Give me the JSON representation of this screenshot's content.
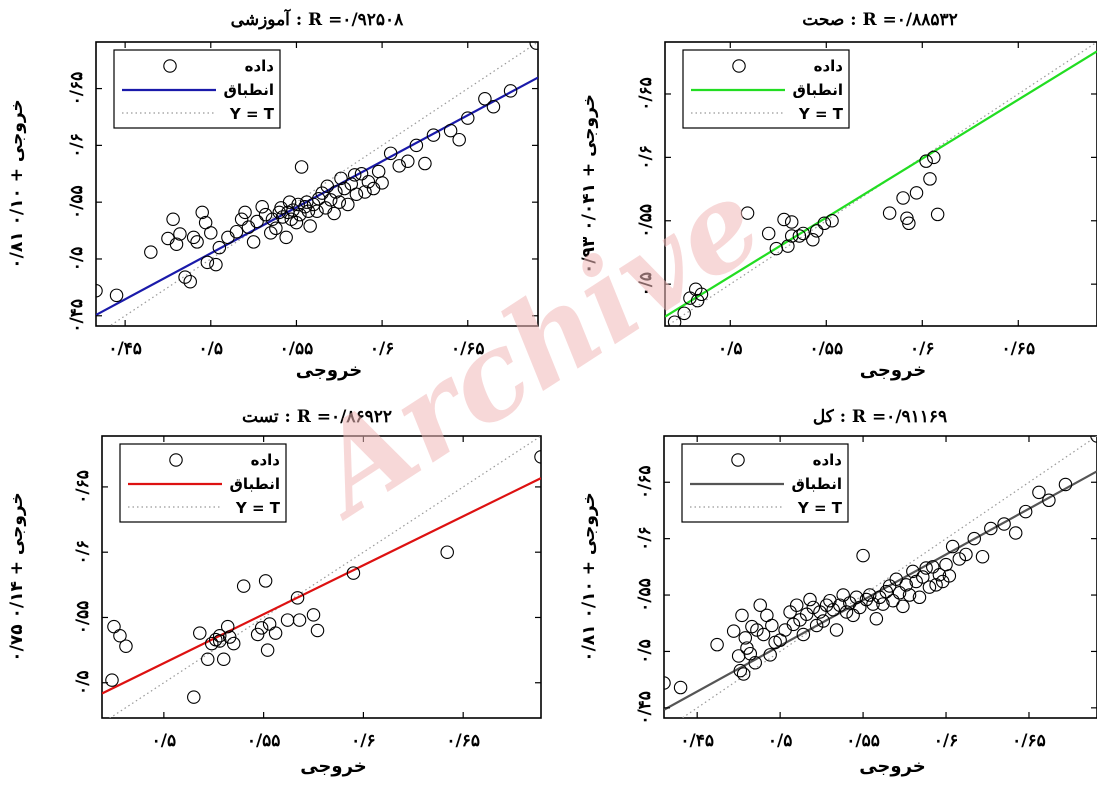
{
  "watermark": "Archive",
  "legend": {
    "data": "داده",
    "fit": "انطباق",
    "identity": "Y = T"
  },
  "chart_data": [
    {
      "type": "scatter",
      "title": "آموزشی : R =۰/۹۲۵۰۸",
      "xlabel": "خروجی",
      "ylabel": "۰/۸۱ خروجی + ۰/۱۰",
      "xlim": [
        0.433,
        0.691
      ],
      "ylim": [
        0.441,
        0.691
      ],
      "xticks": [
        0.45,
        0.5,
        0.55,
        0.6,
        0.65
      ],
      "xtick_labels": [
        "۰/۴۵",
        "۰/۵",
        "۰/۵۵",
        "۰/۶",
        "۰/۶۵"
      ],
      "yticks": [
        0.45,
        0.5,
        0.55,
        0.6,
        0.65
      ],
      "ytick_labels": [
        "۰/۴۵",
        "۰/۵",
        "۰/۵۵",
        "۰/۶",
        "۰/۶۵"
      ],
      "fit": {
        "slope": 0.81,
        "intercept": 0.1,
        "color": "#1a1aaa"
      },
      "points": [
        [
          0.433,
          0.472
        ],
        [
          0.445,
          0.468
        ],
        [
          0.465,
          0.506
        ],
        [
          0.475,
          0.518
        ],
        [
          0.478,
          0.535
        ],
        [
          0.48,
          0.513
        ],
        [
          0.482,
          0.522
        ],
        [
          0.485,
          0.484
        ],
        [
          0.488,
          0.48
        ],
        [
          0.49,
          0.519
        ],
        [
          0.492,
          0.515
        ],
        [
          0.495,
          0.541
        ],
        [
          0.497,
          0.532
        ],
        [
          0.498,
          0.497
        ],
        [
          0.5,
          0.523
        ],
        [
          0.503,
          0.495
        ],
        [
          0.505,
          0.51
        ],
        [
          0.51,
          0.519
        ],
        [
          0.515,
          0.524
        ],
        [
          0.518,
          0.535
        ],
        [
          0.52,
          0.541
        ],
        [
          0.522,
          0.528
        ],
        [
          0.525,
          0.515
        ],
        [
          0.527,
          0.533
        ],
        [
          0.53,
          0.546
        ],
        [
          0.532,
          0.539
        ],
        [
          0.535,
          0.523
        ],
        [
          0.536,
          0.535
        ],
        [
          0.538,
          0.527
        ],
        [
          0.54,
          0.541
        ],
        [
          0.541,
          0.545
        ],
        [
          0.542,
          0.537
        ],
        [
          0.544,
          0.519
        ],
        [
          0.545,
          0.541
        ],
        [
          0.546,
          0.55
        ],
        [
          0.547,
          0.535
        ],
        [
          0.548,
          0.543
        ],
        [
          0.55,
          0.532
        ],
        [
          0.551,
          0.548
        ],
        [
          0.552,
          0.539
        ],
        [
          0.553,
          0.581
        ],
        [
          0.555,
          0.546
        ],
        [
          0.556,
          0.55
        ],
        [
          0.557,
          0.542
        ],
        [
          0.558,
          0.529
        ],
        [
          0.56,
          0.548
        ],
        [
          0.562,
          0.542
        ],
        [
          0.563,
          0.553
        ],
        [
          0.565,
          0.558
        ],
        [
          0.567,
          0.545
        ],
        [
          0.568,
          0.564
        ],
        [
          0.57,
          0.552
        ],
        [
          0.572,
          0.54
        ],
        [
          0.573,
          0.559
        ],
        [
          0.575,
          0.55
        ],
        [
          0.576,
          0.571
        ],
        [
          0.578,
          0.562
        ],
        [
          0.58,
          0.548
        ],
        [
          0.582,
          0.566
        ],
        [
          0.584,
          0.574
        ],
        [
          0.585,
          0.557
        ],
        [
          0.588,
          0.575
        ],
        [
          0.59,
          0.559
        ],
        [
          0.592,
          0.568
        ],
        [
          0.595,
          0.562
        ],
        [
          0.598,
          0.577
        ],
        [
          0.6,
          0.567
        ],
        [
          0.605,
          0.593
        ],
        [
          0.61,
          0.582
        ],
        [
          0.615,
          0.586
        ],
        [
          0.62,
          0.6
        ],
        [
          0.625,
          0.584
        ],
        [
          0.63,
          0.609
        ],
        [
          0.64,
          0.613
        ],
        [
          0.645,
          0.605
        ],
        [
          0.65,
          0.624
        ],
        [
          0.66,
          0.641
        ],
        [
          0.665,
          0.634
        ],
        [
          0.675,
          0.648
        ],
        [
          0.69,
          0.69
        ]
      ]
    },
    {
      "type": "scatter",
      "title": "صحت : R =۰/۸۸۵۳۲",
      "xlabel": "خروجی",
      "ylabel": "۰/۹۳ خروجی + ۰/۰۴۱",
      "xlim": [
        0.466,
        0.691
      ],
      "ylim": [
        0.467,
        0.691
      ],
      "xticks": [
        0.5,
        0.55,
        0.6,
        0.65
      ],
      "xtick_labels": [
        "۰/۵",
        "۰/۵۵",
        "۰/۶",
        "۰/۶۵"
      ],
      "yticks": [
        0.5,
        0.55,
        0.6,
        0.65
      ],
      "ytick_labels": [
        "۰/۵",
        "۰/۵۵",
        "۰/۶",
        "۰/۶۵"
      ],
      "fit": {
        "slope": 0.93,
        "intercept": 0.041,
        "color": "#22dd22"
      },
      "points": [
        [
          0.471,
          0.47
        ],
        [
          0.476,
          0.477
        ],
        [
          0.479,
          0.489
        ],
        [
          0.482,
          0.496
        ],
        [
          0.483,
          0.487
        ],
        [
          0.485,
          0.492
        ],
        [
          0.509,
          0.556
        ],
        [
          0.52,
          0.54
        ],
        [
          0.524,
          0.528
        ],
        [
          0.528,
          0.551
        ],
        [
          0.53,
          0.53
        ],
        [
          0.532,
          0.538
        ],
        [
          0.532,
          0.549
        ],
        [
          0.536,
          0.538
        ],
        [
          0.538,
          0.54
        ],
        [
          0.543,
          0.535
        ],
        [
          0.545,
          0.542
        ],
        [
          0.549,
          0.548
        ],
        [
          0.553,
          0.55
        ],
        [
          0.583,
          0.556
        ],
        [
          0.59,
          0.568
        ],
        [
          0.592,
          0.552
        ],
        [
          0.593,
          0.548
        ],
        [
          0.597,
          0.572
        ],
        [
          0.602,
          0.597
        ],
        [
          0.604,
          0.583
        ],
        [
          0.606,
          0.6
        ],
        [
          0.608,
          0.555
        ]
      ]
    },
    {
      "type": "scatter",
      "title": "تست : R =۰/۸۶۹۲۲",
      "xlabel": "خروجی",
      "ylabel": "۰/۷۵ خروجی + ۰/۱۴",
      "xlim": [
        0.469,
        0.689
      ],
      "ylim": [
        0.473,
        0.689
      ],
      "xticks": [
        0.5,
        0.55,
        0.6,
        0.65
      ],
      "xtick_labels": [
        "۰/۵",
        "۰/۵۵",
        "۰/۶",
        "۰/۶۵"
      ],
      "yticks": [
        0.5,
        0.55,
        0.6,
        0.65
      ],
      "ytick_labels": [
        "۰/۵",
        "۰/۵۵",
        "۰/۶",
        "۰/۶۵"
      ],
      "fit": {
        "slope": 0.75,
        "intercept": 0.14,
        "color": "#dd1111"
      },
      "points": [
        [
          0.474,
          0.502
        ],
        [
          0.475,
          0.543
        ],
        [
          0.478,
          0.536
        ],
        [
          0.481,
          0.528
        ],
        [
          0.515,
          0.489
        ],
        [
          0.518,
          0.538
        ],
        [
          0.522,
          0.518
        ],
        [
          0.524,
          0.53
        ],
        [
          0.526,
          0.533
        ],
        [
          0.528,
          0.532
        ],
        [
          0.528,
          0.536
        ],
        [
          0.53,
          0.518
        ],
        [
          0.532,
          0.543
        ],
        [
          0.533,
          0.535
        ],
        [
          0.535,
          0.53
        ],
        [
          0.54,
          0.574
        ],
        [
          0.547,
          0.537
        ],
        [
          0.549,
          0.542
        ],
        [
          0.551,
          0.578
        ],
        [
          0.552,
          0.525
        ],
        [
          0.553,
          0.545
        ],
        [
          0.556,
          0.538
        ],
        [
          0.562,
          0.548
        ],
        [
          0.567,
          0.565
        ],
        [
          0.568,
          0.548
        ],
        [
          0.575,
          0.552
        ],
        [
          0.577,
          0.54
        ],
        [
          0.595,
          0.584
        ],
        [
          0.642,
          0.6
        ],
        [
          0.689,
          0.673
        ]
      ]
    },
    {
      "type": "scatter",
      "title": "کل : R =۰/۹۱۱۶۹",
      "xlabel": "خروجی",
      "ylabel": "۰/۸۱ خروجی + ۰/۱۰",
      "xlim": [
        0.43,
        0.691
      ],
      "ylim": [
        0.441,
        0.691
      ],
      "xticks": [
        0.45,
        0.5,
        0.55,
        0.6,
        0.65
      ],
      "xtick_labels": [
        "۰/۴۵",
        "۰/۵",
        "۰/۵۵",
        "۰/۶",
        "۰/۶۵"
      ],
      "yticks": [
        0.45,
        0.5,
        0.55,
        0.6,
        0.65
      ],
      "ytick_labels": [
        "۰/۴۵",
        "۰/۵",
        "۰/۵۵",
        "۰/۶",
        "۰/۶۵"
      ],
      "fit": {
        "slope": 0.81,
        "intercept": 0.1,
        "color": "#555555"
      },
      "points": [
        [
          0.43,
          0.472
        ],
        [
          0.44,
          0.468
        ],
        [
          0.462,
          0.506
        ],
        [
          0.472,
          0.518
        ],
        [
          0.475,
          0.496
        ],
        [
          0.476,
          0.483
        ],
        [
          0.477,
          0.532
        ],
        [
          0.478,
          0.48
        ],
        [
          0.479,
          0.512
        ],
        [
          0.48,
          0.503
        ],
        [
          0.482,
          0.498
        ],
        [
          0.483,
          0.522
        ],
        [
          0.485,
          0.49
        ],
        [
          0.486,
          0.519
        ],
        [
          0.488,
          0.541
        ],
        [
          0.49,
          0.515
        ],
        [
          0.492,
          0.532
        ],
        [
          0.494,
          0.497
        ],
        [
          0.495,
          0.523
        ],
        [
          0.497,
          0.508
        ],
        [
          0.5,
          0.51
        ],
        [
          0.503,
          0.519
        ],
        [
          0.506,
          0.535
        ],
        [
          0.508,
          0.524
        ],
        [
          0.51,
          0.541
        ],
        [
          0.512,
          0.528
        ],
        [
          0.514,
          0.515
        ],
        [
          0.516,
          0.533
        ],
        [
          0.518,
          0.546
        ],
        [
          0.52,
          0.539
        ],
        [
          0.522,
          0.523
        ],
        [
          0.524,
          0.535
        ],
        [
          0.526,
          0.527
        ],
        [
          0.528,
          0.541
        ],
        [
          0.53,
          0.545
        ],
        [
          0.532,
          0.537
        ],
        [
          0.534,
          0.519
        ],
        [
          0.536,
          0.541
        ],
        [
          0.538,
          0.55
        ],
        [
          0.54,
          0.535
        ],
        [
          0.542,
          0.543
        ],
        [
          0.544,
          0.532
        ],
        [
          0.546,
          0.548
        ],
        [
          0.548,
          0.539
        ],
        [
          0.55,
          0.585
        ],
        [
          0.552,
          0.546
        ],
        [
          0.554,
          0.55
        ],
        [
          0.556,
          0.542
        ],
        [
          0.558,
          0.529
        ],
        [
          0.56,
          0.548
        ],
        [
          0.562,
          0.542
        ],
        [
          0.564,
          0.553
        ],
        [
          0.566,
          0.558
        ],
        [
          0.568,
          0.545
        ],
        [
          0.57,
          0.564
        ],
        [
          0.572,
          0.552
        ],
        [
          0.574,
          0.54
        ],
        [
          0.576,
          0.559
        ],
        [
          0.578,
          0.55
        ],
        [
          0.58,
          0.571
        ],
        [
          0.582,
          0.562
        ],
        [
          0.584,
          0.548
        ],
        [
          0.586,
          0.566
        ],
        [
          0.588,
          0.574
        ],
        [
          0.59,
          0.557
        ],
        [
          0.592,
          0.575
        ],
        [
          0.594,
          0.559
        ],
        [
          0.596,
          0.568
        ],
        [
          0.598,
          0.562
        ],
        [
          0.6,
          0.577
        ],
        [
          0.602,
          0.567
        ],
        [
          0.604,
          0.593
        ],
        [
          0.608,
          0.582
        ],
        [
          0.612,
          0.586
        ],
        [
          0.617,
          0.6
        ],
        [
          0.622,
          0.584
        ],
        [
          0.627,
          0.609
        ],
        [
          0.635,
          0.613
        ],
        [
          0.642,
          0.605
        ],
        [
          0.648,
          0.624
        ],
        [
          0.656,
          0.641
        ],
        [
          0.662,
          0.634
        ],
        [
          0.672,
          0.648
        ],
        [
          0.691,
          0.691
        ]
      ]
    }
  ]
}
